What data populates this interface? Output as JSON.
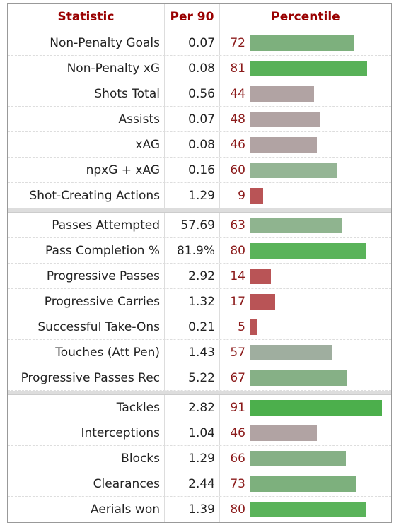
{
  "table": {
    "header": [
      "Statistic",
      "Per 90",
      "Percentile"
    ],
    "sections": [
      [
        {
          "statistic": "Non-Penalty Goals",
          "per90": "0.07",
          "percentile": 72,
          "color": "#7db07d"
        },
        {
          "statistic": "Non-Penalty xG",
          "per90": "0.08",
          "percentile": 81,
          "color": "#58b158"
        },
        {
          "statistic": "Shots Total",
          "per90": "0.56",
          "percentile": 44,
          "color": "#b1a3a3"
        },
        {
          "statistic": "Assists",
          "per90": "0.07",
          "percentile": 48,
          "color": "#b1a3a3"
        },
        {
          "statistic": "xAG",
          "per90": "0.08",
          "percentile": 46,
          "color": "#b1a3a3"
        },
        {
          "statistic": "npxG + xAG",
          "per90": "0.16",
          "percentile": 60,
          "color": "#95b595"
        },
        {
          "statistic": "Shot-Creating Actions",
          "per90": "1.29",
          "percentile": 9,
          "color": "#b95456"
        }
      ],
      [
        {
          "statistic": "Passes Attempted",
          "per90": "57.69",
          "percentile": 63,
          "color": "#8fb48f"
        },
        {
          "statistic": "Pass Completion %",
          "per90": "81.9%",
          "percentile": 80,
          "color": "#5ab35a"
        },
        {
          "statistic": "Progressive Passes",
          "per90": "2.92",
          "percentile": 14,
          "color": "#b95456"
        },
        {
          "statistic": "Progressive Carries",
          "per90": "1.32",
          "percentile": 17,
          "color": "#b95456"
        },
        {
          "statistic": "Successful Take-Ons",
          "per90": "0.21",
          "percentile": 5,
          "color": "#b95456"
        },
        {
          "statistic": "Touches (Att Pen)",
          "per90": "1.43",
          "percentile": 57,
          "color": "#9fae9f"
        },
        {
          "statistic": "Progressive Passes Rec",
          "per90": "5.22",
          "percentile": 67,
          "color": "#86b086"
        }
      ],
      [
        {
          "statistic": "Tackles",
          "per90": "2.82",
          "percentile": 91,
          "color": "#4caf4c"
        },
        {
          "statistic": "Interceptions",
          "per90": "1.04",
          "percentile": 46,
          "color": "#b1a3a3"
        },
        {
          "statistic": "Blocks",
          "per90": "1.29",
          "percentile": 66,
          "color": "#86b086"
        },
        {
          "statistic": "Clearances",
          "per90": "2.44",
          "percentile": 73,
          "color": "#7db07d"
        },
        {
          "statistic": "Aerials won",
          "per90": "1.39",
          "percentile": 80,
          "color": "#5ab35a"
        }
      ]
    ]
  }
}
